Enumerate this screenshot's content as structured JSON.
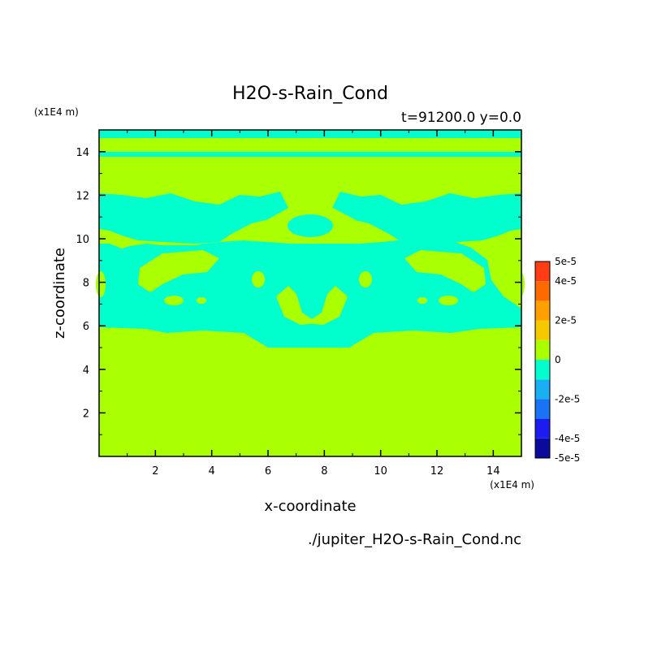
{
  "chart_data": {
    "type": "heatmap",
    "title": "H2O-s-Rain_Cond",
    "subtitle": "t=91200.0 y=0.0",
    "xlabel": "x-coordinate",
    "ylabel": "z-coordinate",
    "x_unit": "(x1E4 m)",
    "y_unit": "(x1E4 m)",
    "source_file": "./jupiter_H2O-s-Rain_Cond.nc",
    "xlim": [
      0,
      15
    ],
    "ylim": [
      0,
      15
    ],
    "x_ticks": [
      "2",
      "4",
      "6",
      "8",
      "10",
      "12",
      "14"
    ],
    "y_ticks": [
      "2",
      "4",
      "6",
      "8",
      "10",
      "12",
      "14"
    ],
    "colorbar": {
      "levels": [
        -5e-05,
        -4e-05,
        -3e-05,
        -2e-05,
        -1e-05,
        0,
        1e-05,
        2e-05,
        3e-05,
        4e-05,
        5e-05
      ],
      "colors": [
        "#0a0a9c",
        "#1c1cf0",
        "#1a72f5",
        "#18b0f2",
        "#00ffcc",
        "#aaff00",
        "#f5c800",
        "#ffa000",
        "#ff6a00",
        "#ff3c14"
      ],
      "labels": [
        "5e-5",
        "4e-5",
        "2e-5",
        "0",
        "-2e-5",
        "-4e-5",
        "-5e-5"
      ],
      "label_values": [
        5e-05,
        4e-05,
        2e-05,
        0,
        -2e-05,
        -4e-05,
        -5e-05
      ]
    },
    "fields": {
      "background_level": "0 to 1e-5",
      "negative_level": "-1e-5 to 0",
      "background_color": "#aaff00",
      "negative_color": "#00ffcc"
    }
  }
}
